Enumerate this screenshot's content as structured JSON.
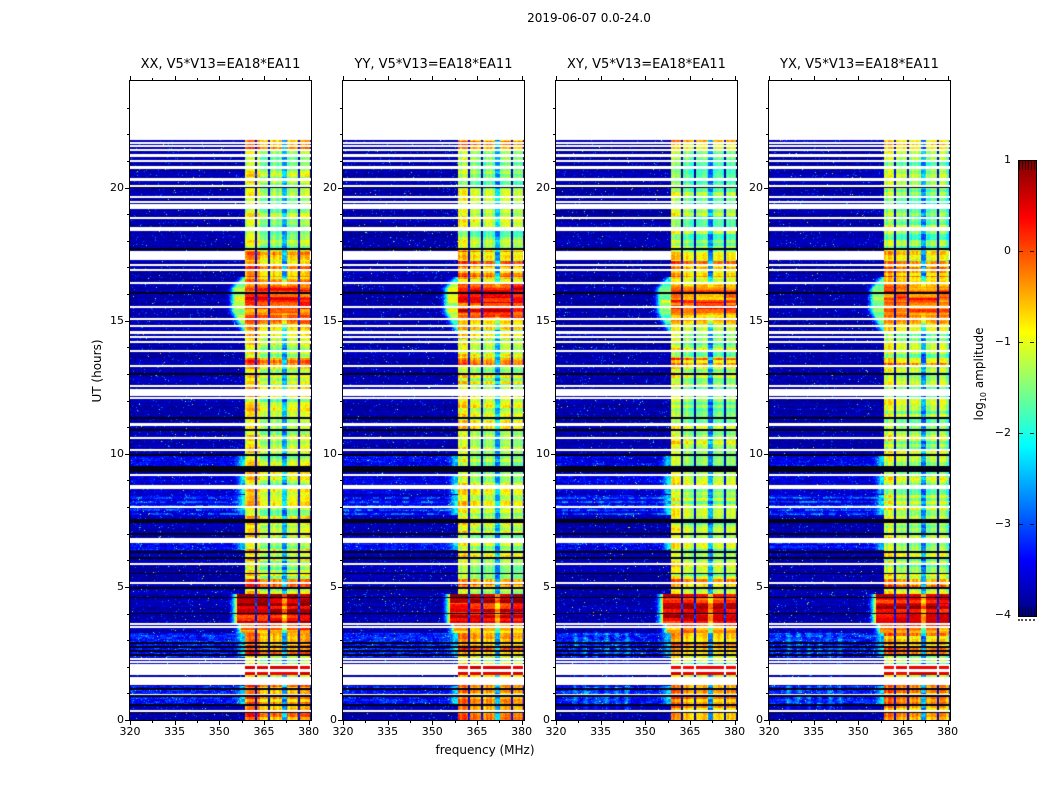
{
  "figure": {
    "title": "2019-06-07 0.0-24.0"
  },
  "axes": {
    "xlabel": "frequency (MHz)",
    "ylabel": "UT (hours)",
    "x_ticks": [
      "320",
      "335",
      "350",
      "365",
      "380"
    ],
    "y_ticks": [
      "0",
      "5",
      "10",
      "15",
      "20"
    ]
  },
  "colorbar": {
    "label_pre": "log",
    "label_sub": "10",
    "label_post": " amplitude",
    "tick_labels": [
      "1",
      "0",
      "−1",
      "−2",
      "−3",
      "−4"
    ],
    "gradient_colors": [
      "#800000",
      "#ff0000",
      "#ffff00",
      "#00ffff",
      "#0000ff",
      "#000080"
    ],
    "gradient_stops": [
      0,
      12.5,
      37.5,
      62.5,
      87.5,
      100
    ]
  },
  "chart_data": {
    "type": "heatmap",
    "title": "2019-06-07 0.0-24.0",
    "xlabel": "frequency (MHz)",
    "ylabel": "UT (hours)",
    "x_range": [
      320,
      380.8
    ],
    "y_range": [
      0,
      24
    ],
    "x_ticks": [
      320,
      335,
      350,
      365,
      380
    ],
    "y_ticks": [
      0,
      5,
      10,
      15,
      20
    ],
    "value_label": "log10 amplitude",
    "value_range": [
      -4,
      1
    ],
    "colormap": "jet",
    "data_end_hour": 21.78,
    "panels": [
      {
        "label": "XX, V5*V13=EA18*EA11",
        "pol": "XX",
        "seed": 101,
        "band_gain": 1.0,
        "smudge": false
      },
      {
        "label": "YY, V5*V13=EA18*EA11",
        "pol": "YY",
        "seed": 202,
        "band_gain": 1.05,
        "smudge": false
      },
      {
        "label": "XY, V5*V13=EA18*EA11",
        "pol": "XY",
        "seed": 303,
        "band_gain": 0.92,
        "smudge": true
      },
      {
        "label": "YX, V5*V13=EA18*EA11",
        "pol": "YX",
        "seed": 404,
        "band_gain": 0.92,
        "smudge": true
      }
    ],
    "rfi_band": {
      "f_start": 358.5,
      "f_end": 380.3,
      "base_level": -1.25,
      "flag_freqs": [
        362.3,
        366.7,
        376.9
      ],
      "gap_freq_range": [
        371.0,
        372.9
      ]
    },
    "events": [
      {
        "name": "storm",
        "hours": [
          3.65,
          4.75
        ],
        "level": 0.45,
        "extend_mhz": 2.5
      },
      {
        "name": "pre_storm",
        "hours": [
          3.28,
          3.62
        ],
        "level": -0.35,
        "extend_mhz": 1.2
      },
      {
        "name": "sunrise",
        "hours": [
          14.6,
          16.65
        ],
        "peak_hours": [
          15.35,
          16.2
        ],
        "level": 0.2,
        "extend_mhz": 3.2
      }
    ],
    "band_bright_hours": [
      [
        0,
        1.3
      ],
      [
        2.4,
        3.3
      ],
      [
        4.95,
        5.3
      ],
      [
        13.35,
        13.6
      ],
      [
        16.65,
        17.25
      ],
      [
        21.45,
        21.78
      ]
    ],
    "white_blocks": [
      [
        1.3,
        1.6
      ],
      [
        12.18,
        12.45
      ]
    ],
    "band_only_blocks": [
      {
        "hours": [
          1.68,
          2.02
        ],
        "style": "red_dashes"
      },
      {
        "hours": [
          17.28,
          17.62
        ],
        "style": "band_visible"
      }
    ],
    "white_lines": [
      0.35,
      0.95,
      2.05,
      2.18,
      2.3,
      3.5,
      3.6,
      5.15,
      5.85,
      6.7,
      6.78,
      8.0,
      8.7,
      8.78,
      9.2,
      10.15,
      10.6,
      11.1,
      12.1,
      12.55,
      13.3,
      13.85,
      14.2,
      14.38,
      14.55,
      14.8,
      15.05,
      15.5,
      16.4,
      16.9,
      17.1,
      18.4,
      18.48,
      18.85,
      19.25,
      19.35,
      19.45,
      19.65,
      20.05,
      20.3,
      20.75,
      21.0,
      21.2,
      21.4,
      21.55,
      21.68
    ],
    "black_lines": [
      0.28,
      0.55,
      0.9,
      1.18,
      2.45,
      2.6,
      2.75,
      2.9,
      4.0,
      4.6,
      4.95,
      5.5,
      6.1,
      6.3,
      7.0,
      7.45,
      7.52,
      9.35,
      9.42,
      9.5,
      9.95,
      10.9,
      11.35,
      13.0,
      16.05,
      17.68,
      20.0
    ],
    "light_periods": [
      {
        "hours": [
          0.6,
          1.28
        ],
        "boost": 0.5
      },
      {
        "hours": [
          2.35,
          3.28
        ],
        "boost": 0.55
      },
      {
        "hours": [
          6.4,
          6.65
        ],
        "boost": 0.4
      },
      {
        "hours": [
          7.7,
          8.45
        ],
        "boost": 0.55,
        "striped": true
      },
      {
        "hours": [
          8.5,
          9.25
        ],
        "boost": 0.25
      },
      {
        "hours": [
          9.55,
          9.9
        ],
        "boost": 0.35
      }
    ],
    "smudge": {
      "hours": [
        0.3,
        3.3
      ],
      "freq_centers": [
        326.5,
        330,
        333.5,
        337,
        340.5,
        344
      ],
      "level_boost": 0.8
    }
  }
}
